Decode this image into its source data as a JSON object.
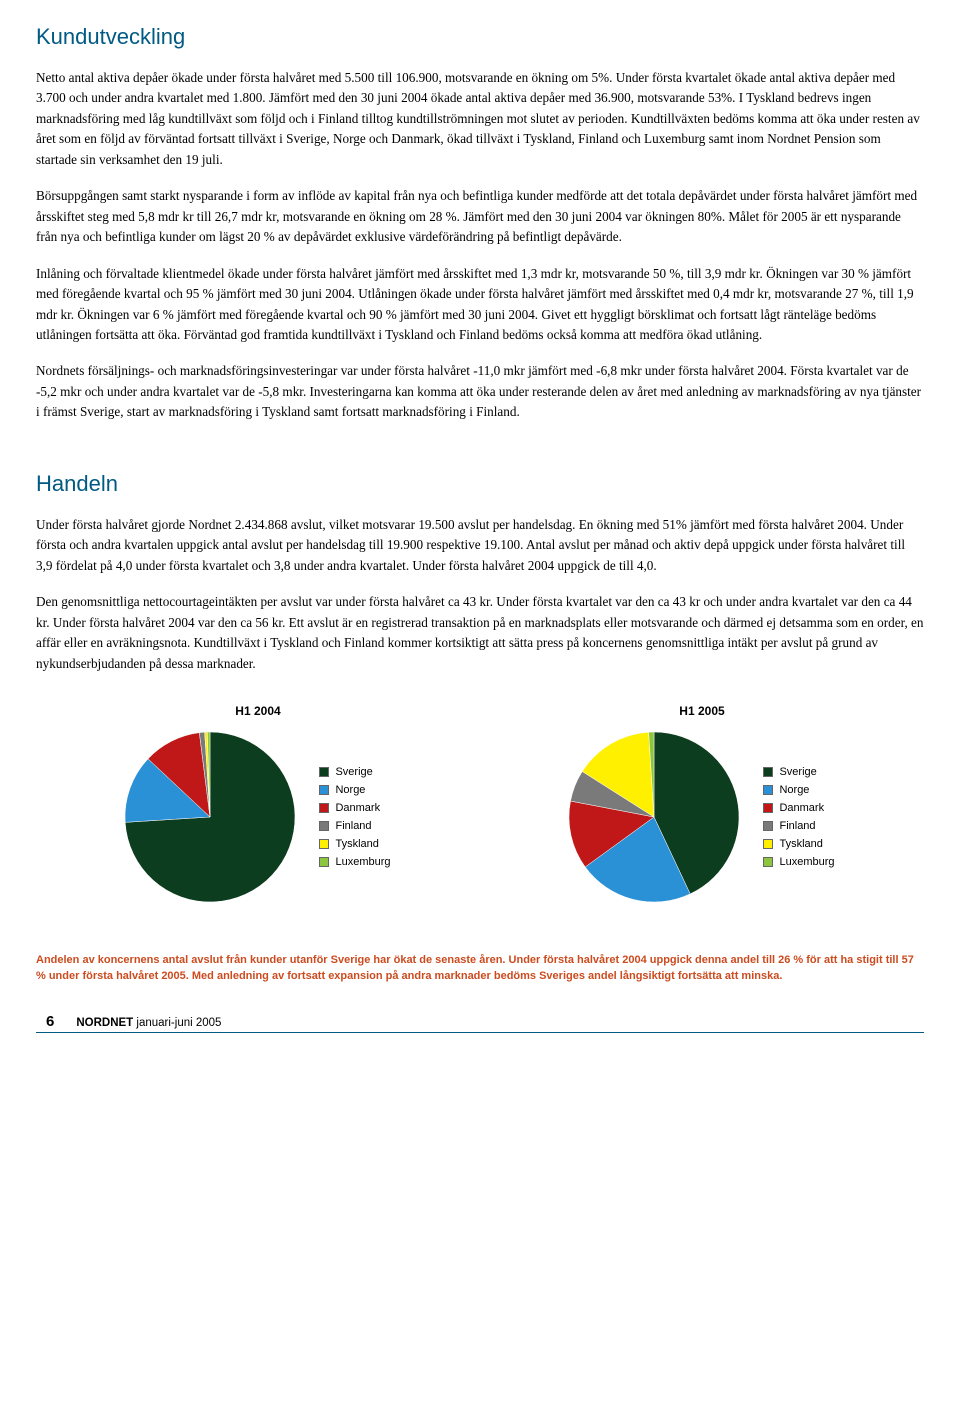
{
  "section1": {
    "title": "Kundutveckling",
    "p1": "Netto antal aktiva depåer ökade under första halvåret med 5.500 till 106.900, motsvarande en ökning om 5%. Under första kvartalet ökade antal aktiva depåer med 3.700 och under andra kvartalet med 1.800. Jämfört med den 30 juni 2004 ökade antal aktiva depåer med 36.900, motsvarande 53%. I Tyskland bedrevs ingen marknadsföring med låg kundtillväxt som följd och i Finland tilltog kundtillströmningen mot slutet av perioden. Kundtillväxten bedöms komma att öka under resten av året som en följd av förväntad fortsatt tillväxt i Sverige, Norge och Danmark, ökad tillväxt i Tyskland, Finland och Luxemburg samt inom Nordnet Pension som startade sin verksamhet den 19 juli.",
    "p2": "Börsuppgången samt starkt nysparande i form av inflöde av kapital från nya och befintliga kunder medförde att det totala depåvärdet under första halvåret jämfört med årsskiftet steg med 5,8 mdr kr till 26,7 mdr kr, motsvarande en ökning om 28 %. Jämfört med den 30 juni 2004 var ökningen 80%. Målet för 2005 är ett nysparande från nya och befintliga kunder om lägst 20 % av depåvärdet exklusive värdeförändring på befintligt depåvärde.",
    "p3": "Inlåning och förvaltade klientmedel ökade under första halvåret jämfört med årsskiftet med 1,3 mdr kr, motsvarande 50 %, till 3,9 mdr kr. Ökningen var 30 % jämfört med föregående kvartal och 95 % jämfört med 30 juni 2004. Utlåningen ökade under första halvåret jämfört med årsskiftet med 0,4 mdr kr, motsvarande 27 %, till 1,9 mdr kr. Ökningen var 6 % jämfört med föregående kvartal och 90 % jämfört med 30 juni 2004. Givet ett hyggligt börsklimat och fortsatt lågt ränteläge bedöms utlåningen fortsätta att öka. Förväntad god framtida kundtillväxt i Tyskland och Finland bedöms också komma att medföra ökad utlåning.",
    "p4": "Nordnets försäljnings- och marknadsföringsinvesteringar var under första halvåret -11,0 mkr jämfört med -6,8 mkr under första halvåret 2004. Första kvartalet var de -5,2 mkr och under andra kvartalet var de -5,8 mkr. Investeringarna kan komma att öka under resterande delen av året med anledning av marknadsföring av nya tjänster i främst Sverige, start av marknadsföring i Tyskland samt fortsatt marknadsföring i Finland."
  },
  "section2": {
    "title": "Handeln",
    "p1": "Under första halvåret gjorde Nordnet 2.434.868 avslut, vilket motsvarar 19.500 avslut per handelsdag. En ökning med 51% jämfört med första halvåret 2004. Under första och andra kvartalen uppgick antal avslut per handelsdag till 19.900 respektive 19.100. Antal avslut per månad och aktiv depå uppgick under första halvåret till 3,9 fördelat på 4,0 under första kvartalet och 3,8 under andra kvartalet. Under första halvåret 2004 uppgick de till 4,0.",
    "p2": "Den genomsnittliga nettocourtageintäkten per avslut var under första halvåret ca 43 kr. Under första kvartalet var den ca 43 kr och under andra kvartalet var den ca 44 kr. Under första halvåret 2004 var den ca 56 kr. Ett avslut är en registrerad transaktion på en marknadsplats eller motsvarande och därmed ej detsamma som en order, en affär eller en avräkningsnota. Kundtillväxt i Tyskland och Finland kommer kortsiktigt att sätta press på koncernens genomsnittliga intäkt per avslut på grund av nykundserbjudanden på dessa marknader."
  },
  "charts": {
    "chart1": {
      "title": "H1 2004",
      "type": "pie",
      "labels": [
        "Sverige",
        "Norge",
        "Danmark",
        "Finland",
        "Tyskland",
        "Luxemburg"
      ],
      "values": [
        74,
        13,
        11,
        1,
        0.5,
        0.5
      ],
      "colors": [
        "#0c3d1e",
        "#2a91d6",
        "#c01818",
        "#7a7a7a",
        "#fff000",
        "#8cc63f"
      ],
      "diameter": 170,
      "background": "#ffffff",
      "label_fontsize": 11
    },
    "chart2": {
      "title": "H1 2005",
      "type": "pie",
      "labels": [
        "Sverige",
        "Norge",
        "Danmark",
        "Finland",
        "Tyskland",
        "Luxemburg"
      ],
      "values": [
        43,
        22,
        13,
        6,
        15,
        1
      ],
      "colors": [
        "#0c3d1e",
        "#2a91d6",
        "#c01818",
        "#7a7a7a",
        "#fff000",
        "#8cc63f"
      ],
      "diameter": 170,
      "background": "#ffffff",
      "label_fontsize": 11
    }
  },
  "footnote": "Andelen av koncernens antal avslut från kunder utanför Sverige har ökat de senaste åren. Under första halvåret 2004 uppgick denna andel till 26 % för att ha stigit till 57 % under första halvåret 2005. Med anledning av fortsatt expansion på andra marknader bedöms Sveriges andel långsiktigt fortsätta att minska.",
  "footer": {
    "page": "6",
    "brand": "NORDNET",
    "period": " januari-juni 2005"
  }
}
